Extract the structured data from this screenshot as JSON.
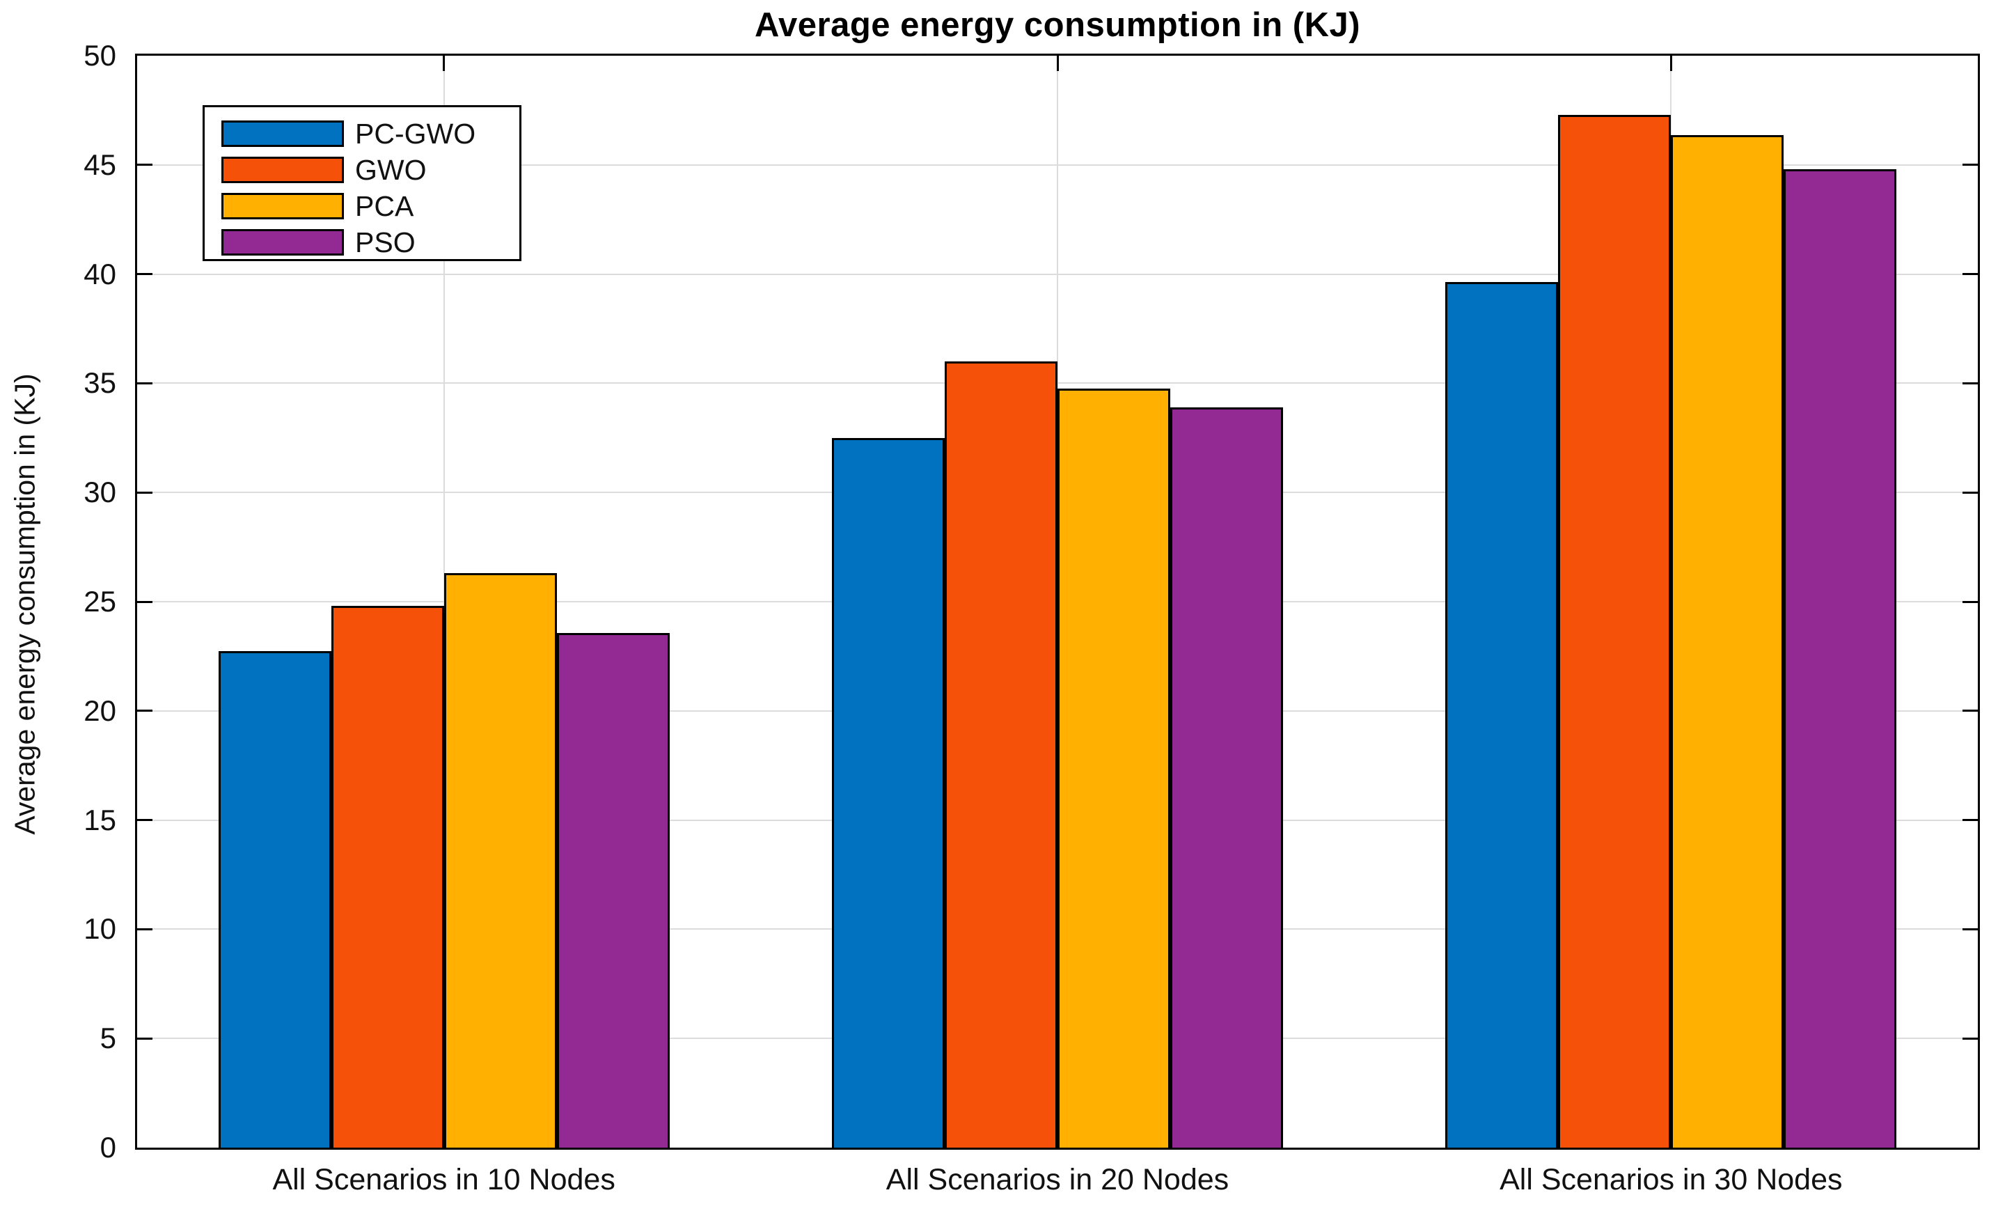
{
  "figure": {
    "background": "#FFFFFF",
    "axis_color": "#000000",
    "gridline_color": "#DCDCDC",
    "text_color": "#111111"
  },
  "chart_data": {
    "type": "bar",
    "title": "Average energy consumption in (KJ)",
    "xlabel": "",
    "ylabel": "Average energy consumption in (KJ)",
    "categories": [
      "All Scenarios in 10 Nodes",
      "All Scenarios in 20 Nodes",
      "All Scenarios in 30 Nodes"
    ],
    "series": [
      {
        "name": "PC-GWO",
        "color": "#0072BF",
        "values": [
          22.75,
          32.5,
          39.65
        ]
      },
      {
        "name": "GWO",
        "color": "#F65109",
        "values": [
          24.8,
          36.0,
          47.3
        ]
      },
      {
        "name": "PCA",
        "color": "#FFB000",
        "values": [
          26.3,
          34.75,
          46.35
        ]
      },
      {
        "name": "PSO",
        "color": "#932A93",
        "values": [
          23.55,
          33.9,
          44.8
        ]
      }
    ],
    "ylim": [
      0,
      50
    ],
    "ytick_step": 5,
    "ytick_labels": [
      "0",
      "5",
      "10",
      "15",
      "20",
      "25",
      "30",
      "35",
      "40",
      "45",
      "50"
    ],
    "grid": true,
    "legend_position": "top-left",
    "legend_entries": [
      "PC-GWO",
      "GWO",
      "PCA",
      "PSO"
    ]
  }
}
